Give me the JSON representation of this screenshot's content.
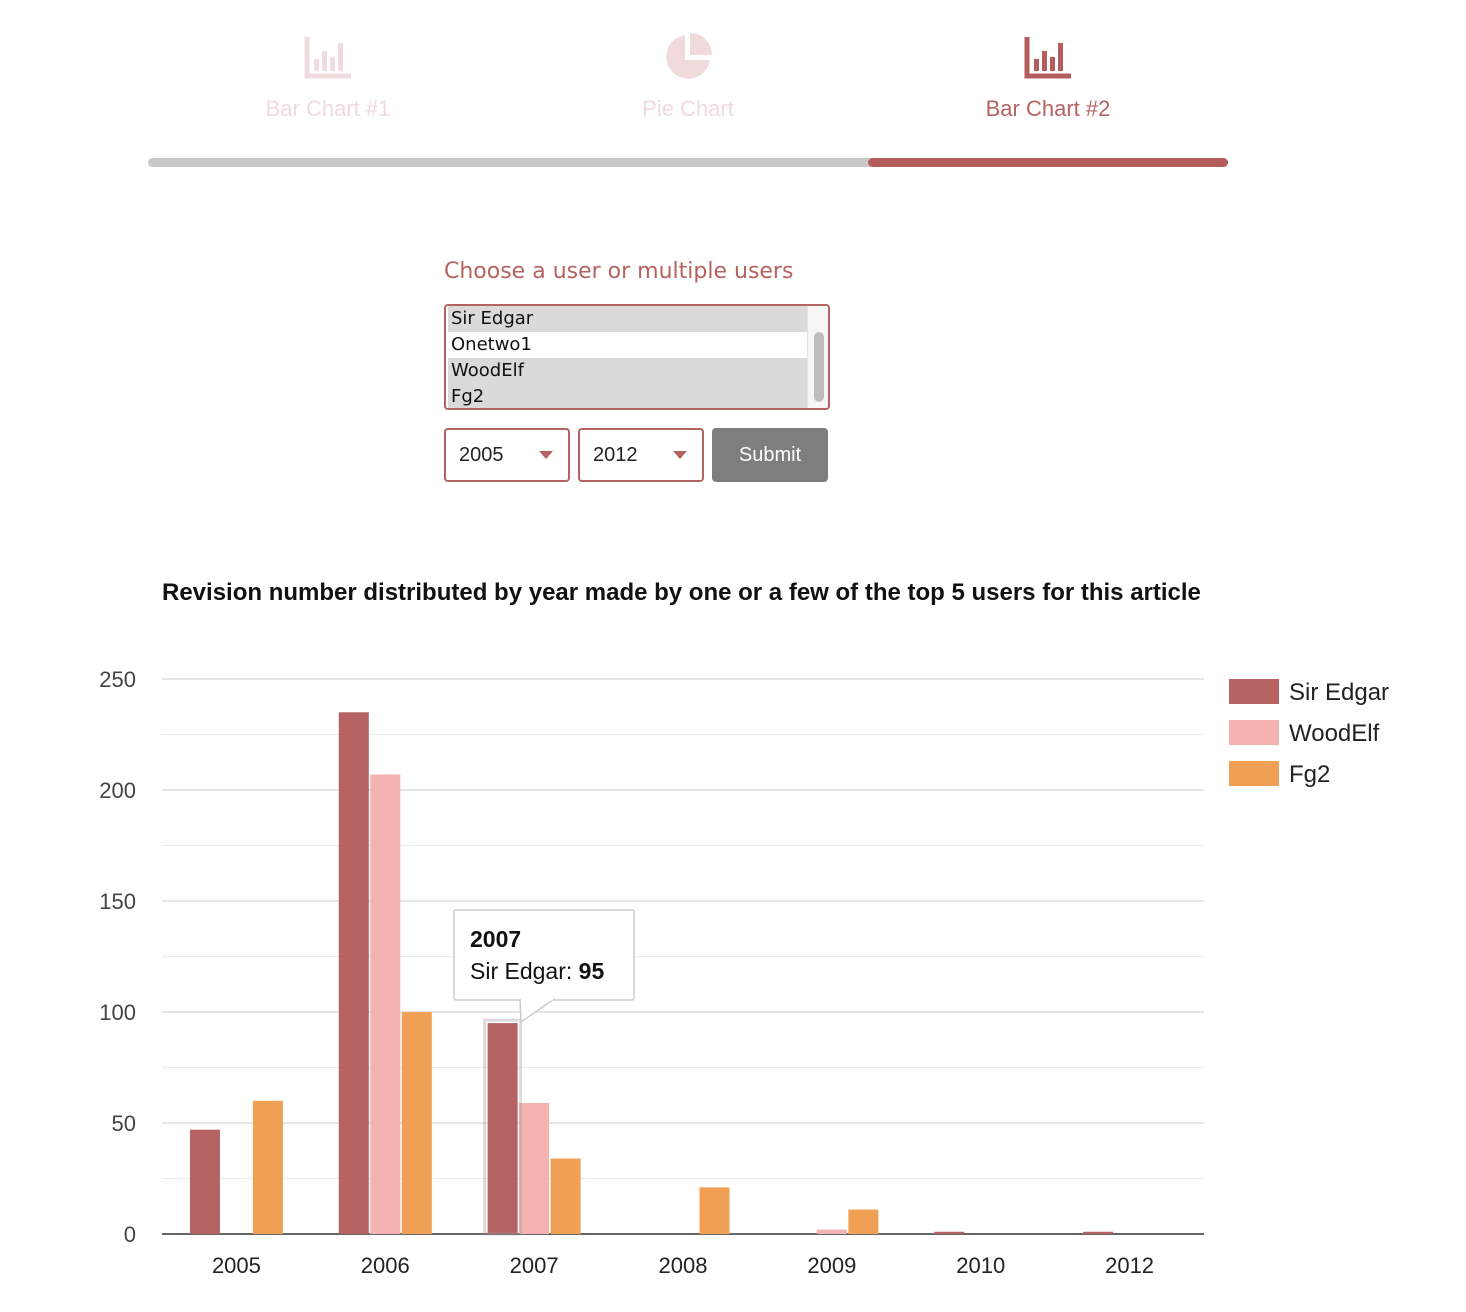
{
  "tabs": [
    {
      "label": "Bar Chart #1",
      "icon": "bar-chart-icon",
      "active": false
    },
    {
      "label": "Pie Chart",
      "icon": "pie-chart-icon",
      "active": false
    },
    {
      "label": "Bar Chart #2",
      "icon": "bar-chart-icon",
      "active": true
    }
  ],
  "progress": {
    "step": 3,
    "total": 3
  },
  "form": {
    "title": "Choose a user or multiple users",
    "users": [
      {
        "label": "Sir Edgar",
        "selected": true
      },
      {
        "label": "Onetwo1",
        "selected": false
      },
      {
        "label": "WoodElf",
        "selected": true
      },
      {
        "label": "Fg2",
        "selected": true
      }
    ],
    "from_year": "2005",
    "to_year": "2012",
    "submit_label": "Submit"
  },
  "colors": {
    "accent": "#b56261",
    "tab_inactive": "#f1dadb",
    "series": [
      "#b56262",
      "#f4b2b1",
      "#f0a055"
    ]
  },
  "chart_data": {
    "type": "bar",
    "title": "Revision number distributed by year made by one or a few of the top 5 users for this article",
    "categories": [
      "2005",
      "2006",
      "2007",
      "2008",
      "2009",
      "2010",
      "2012"
    ],
    "series": [
      {
        "name": "Sir Edgar",
        "values": [
          47,
          235,
          95,
          0,
          0,
          1,
          1
        ]
      },
      {
        "name": "WoodElf",
        "values": [
          0,
          207,
          59,
          0,
          2,
          0,
          0
        ]
      },
      {
        "name": "Fg2",
        "values": [
          60,
          100,
          34,
          21,
          11,
          0,
          0
        ]
      }
    ],
    "ylim": [
      0,
      250
    ],
    "yticks": [
      0,
      50,
      100,
      150,
      200,
      250
    ],
    "xlabel": "",
    "ylabel": "",
    "grid": true,
    "legend_position": "right",
    "tooltip": {
      "category": "2007",
      "series": "Sir Edgar",
      "value": "95"
    }
  }
}
